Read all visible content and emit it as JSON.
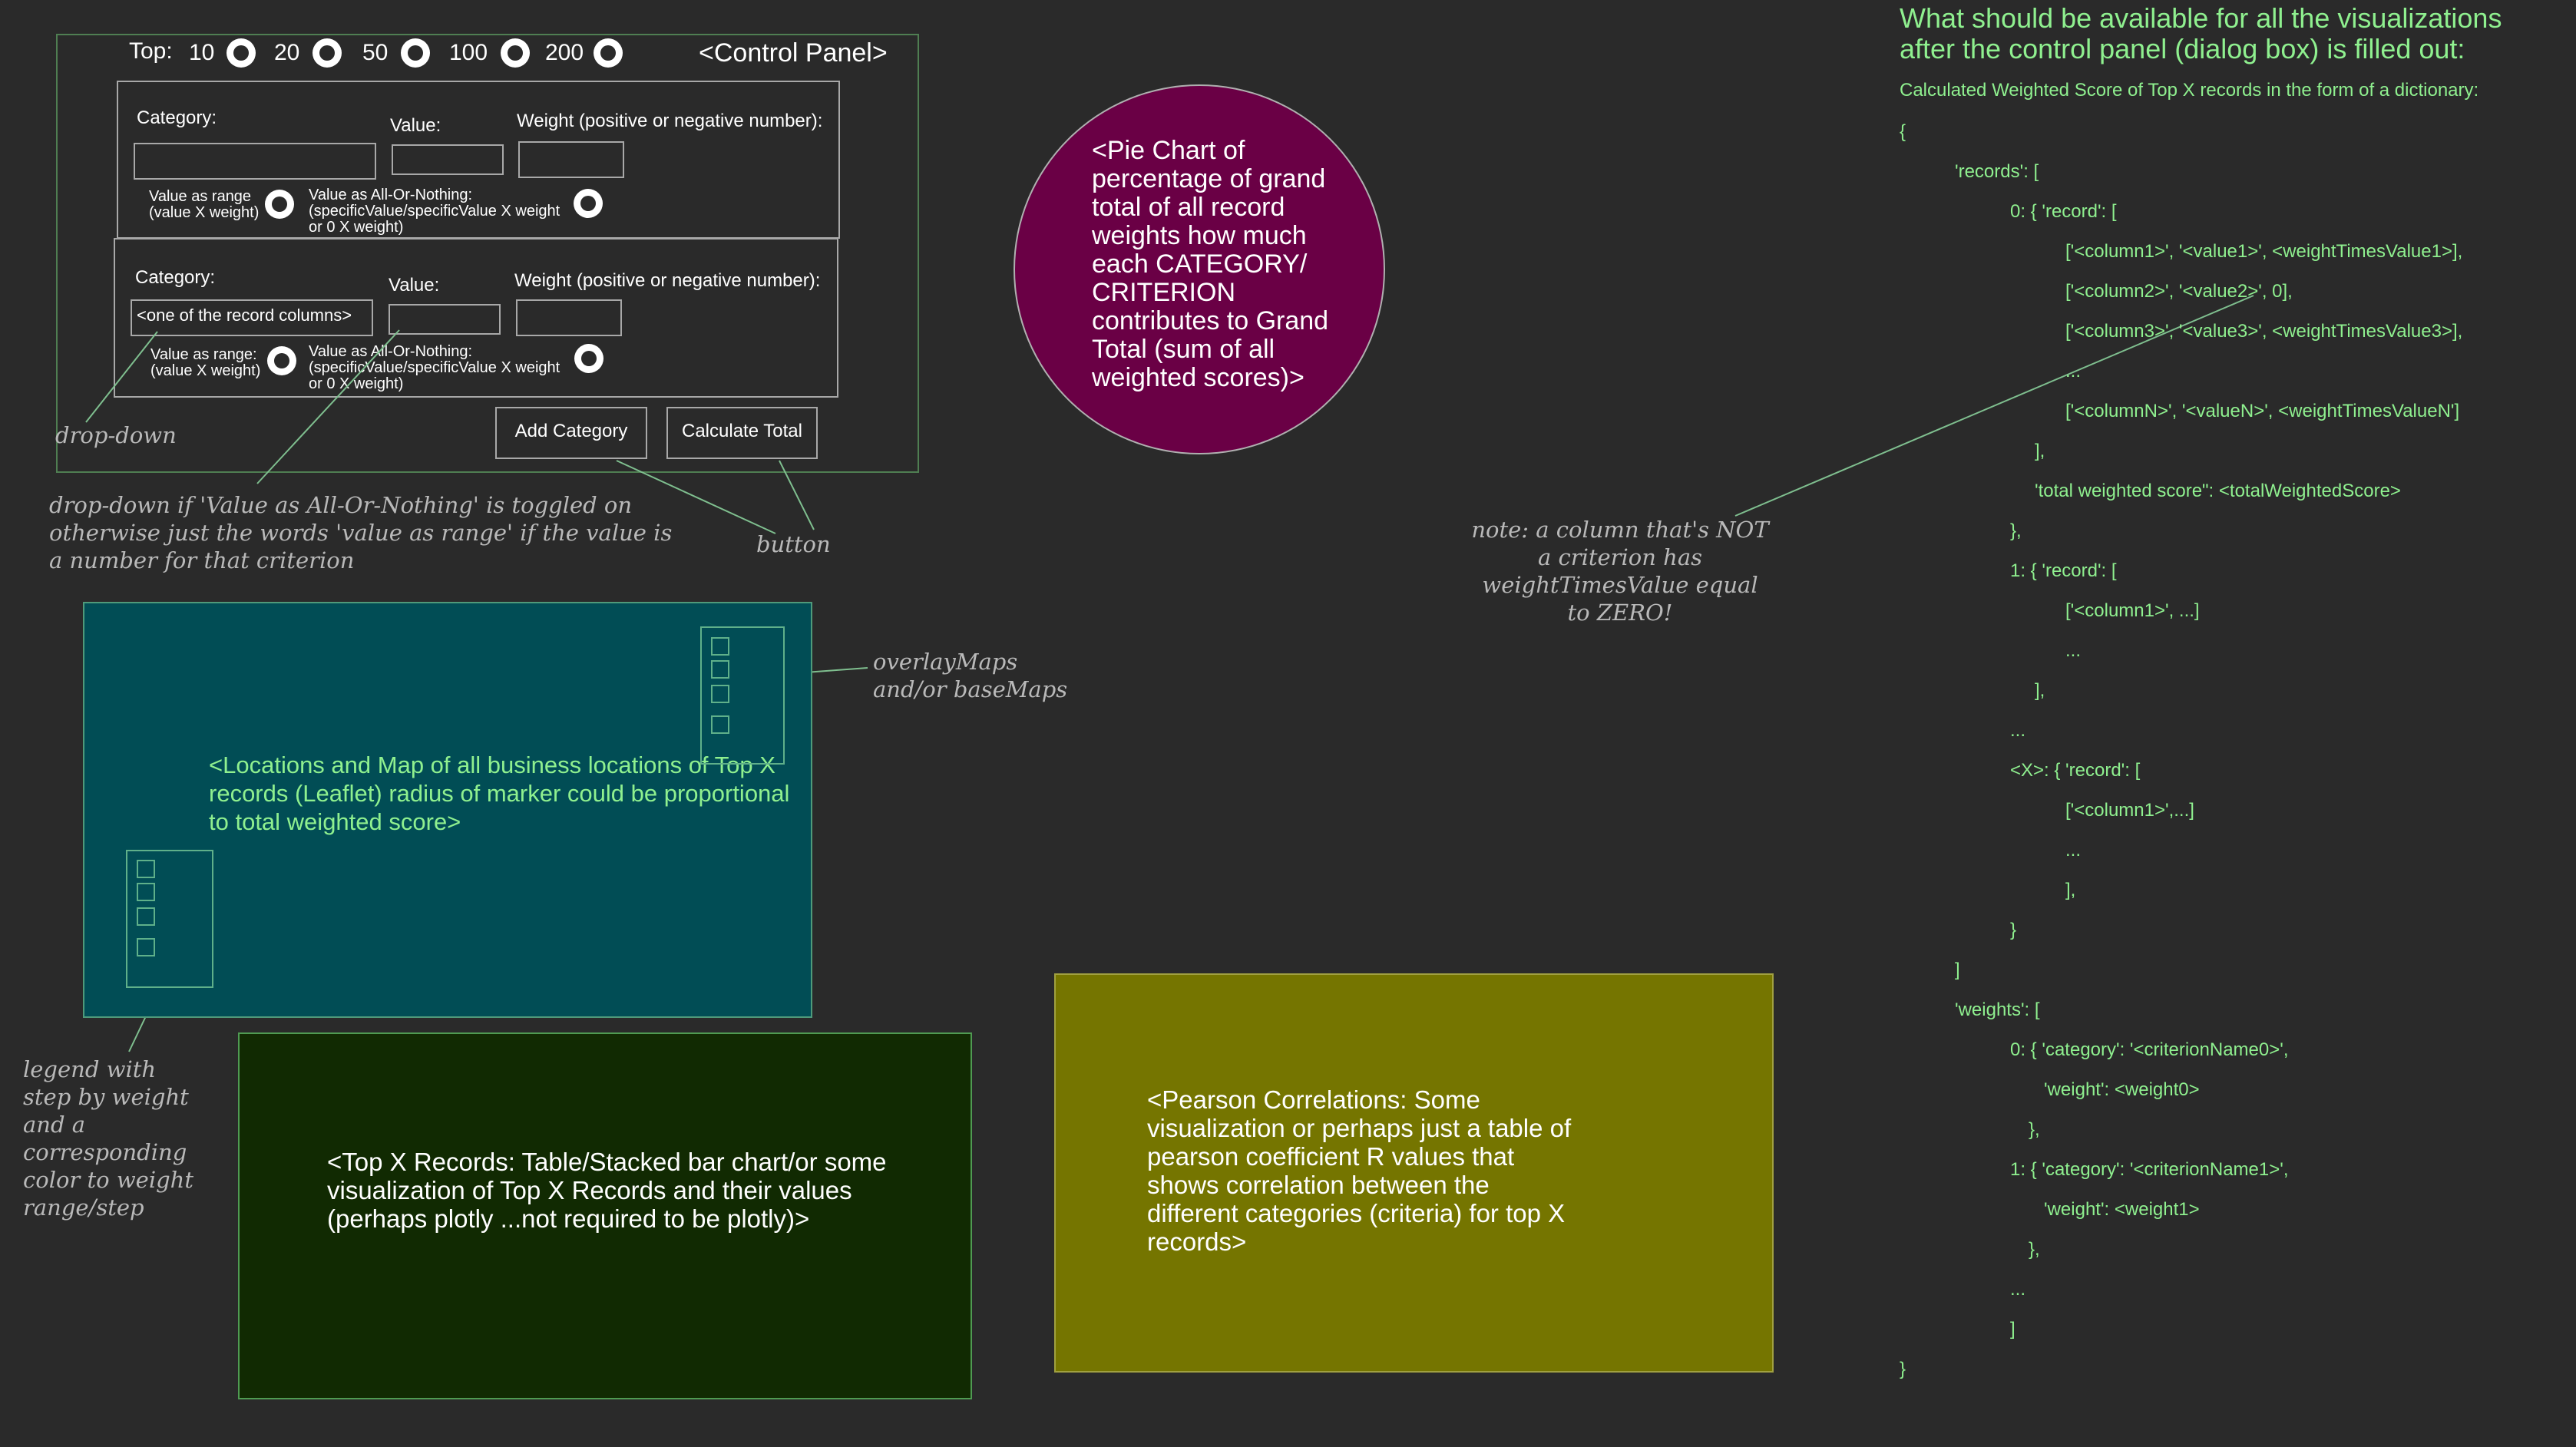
{
  "control_panel": {
    "title": "<Control Panel>",
    "top_label": "Top:",
    "top_options": [
      "10",
      "20",
      "50",
      "100",
      "200"
    ],
    "rows": [
      {
        "category_label": "Category:",
        "value_label": "Value:",
        "weight_label": "Weight (positive or negative number):",
        "category_value": "",
        "range_option": "Value as range\n(value X weight)",
        "aon_option": "Value as All-Or-Nothing:\n(specificValue/specificValue X weight\nor 0 X weight)"
      },
      {
        "category_label": "Category:",
        "value_label": "Value:",
        "weight_label": "Weight (positive or negative number):",
        "category_value": "<one of the record columns>",
        "range_option": "Value as range:\n(value X weight)",
        "aon_option": "Value as All-Or-Nothing:\n(specificValue/specificValue X weight\nor 0 X weight)"
      }
    ],
    "add_button": "Add Category",
    "calc_button": "Calculate Total"
  },
  "annotations": {
    "dropdown": "drop-down",
    "dropdown_note": "drop-down if 'Value as All-Or-Nothing' is toggled on\notherwise just the words 'value as range' if the value is\na number for that criterion",
    "button": "button",
    "overlay": "overlayMaps\nand/or baseMaps",
    "legend": "legend with\nstep by weight\nand a\ncorresponding\ncolor to weight\nrange/step",
    "note": "note: a column that's NOT\na criterion has\nweightTimesValue equal\nto ZERO!"
  },
  "pie": {
    "text": "<Pie Chart of percentage of grand total of all record weights how much each CATEGORY/ CRITERION contributes to Grand Total (sum of all weighted scores)>",
    "color": "#6a0045"
  },
  "map_panel": {
    "text": "<Locations and Map of all business locations of Top X records (Leaflet) radius of marker could be proportional to total weighted score>",
    "color": "#014d55"
  },
  "top_records": {
    "text": "<Top X Records: Table/Stacked bar chart/or some visualization of Top X Records and their values (perhaps plotly ...not required to be plotly)>",
    "color": "#112a02"
  },
  "pearson": {
    "text": "<Pearson Correlations: Some visualization or perhaps just a table of pearson coefficient R values that shows correlation between the different categories (criteria) for top X records>",
    "color": "#757500"
  },
  "spec": {
    "title": "What should be available for all the visualizations after the control panel (dialog box) is filled out:",
    "subtitle": "Calculated Weighted Score of Top X records in the form of a dictionary:",
    "lines": [
      "{",
      "'records': [",
      "0: { 'record': [",
      "['<column1>', '<value1>', <weightTimesValue1>],",
      "['<column2>', '<value2>', 0],",
      "['<column3>', '<value3>', <weightTimesValue3>],",
      "...",
      "['<columnN>', '<valueN>', <weightTimesValueN']",
      "],",
      "'total weighted score\": <totalWeightedScore>",
      "},",
      "1: { 'record': [",
      "['<column1>', ...]",
      "...",
      "],",
      "...",
      "<X>: { 'record': [",
      "['<column1>',...]",
      "...",
      "],",
      "}",
      "]",
      "'weights': [",
      "0: { 'category': '<criterionName0>',",
      "'weight': <weight0>",
      "},",
      "1: { 'category': '<criterionName1>',",
      "'weight': <weight1>",
      "},",
      "...",
      "]",
      "}"
    ]
  }
}
